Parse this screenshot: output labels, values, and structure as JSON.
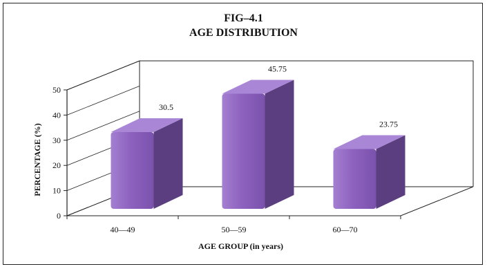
{
  "chart_data": {
    "type": "bar",
    "title": "FIG–4.1",
    "subtitle": "AGE DISTRIBUTION",
    "xlabel": "AGE GROUP (in years)",
    "ylabel": "PERCENTAGE (%)",
    "categories": [
      "40—49",
      "50—59",
      "60—70"
    ],
    "values": [
      30.5,
      45.75,
      23.75
    ],
    "data_labels": [
      "30.5",
      "45.75",
      "23.75"
    ],
    "yticks": [
      0,
      10,
      20,
      30,
      40,
      50
    ],
    "ylim": [
      0,
      50
    ],
    "grid": false,
    "legend": "none",
    "style": "3d-column",
    "colors": {
      "bar_front": "#8d62bf",
      "bar_side": "#5a3e80",
      "bar_top": "#a987d6",
      "axis": "#222222"
    }
  }
}
